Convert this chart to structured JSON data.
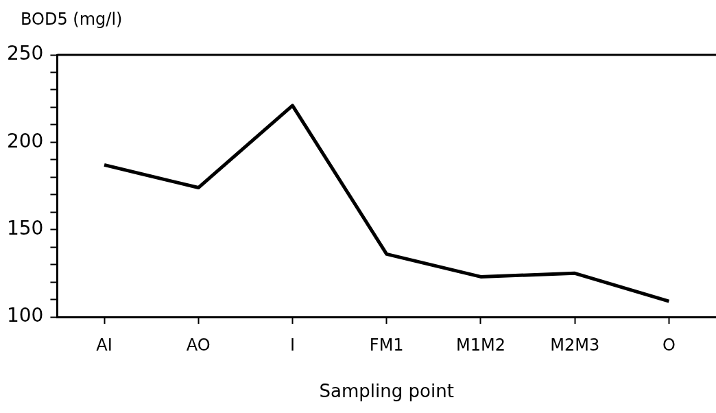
{
  "chart_data": {
    "type": "line",
    "ylabel": "BOD5 (mg/l)",
    "xlabel": "Sampling point",
    "categories": [
      "AI",
      "AO",
      "I",
      "FM1",
      "M1M2",
      "M2M3",
      "O"
    ],
    "series": [
      {
        "color": "#000000",
        "values": [
          187,
          174,
          221,
          136,
          123,
          125,
          109
        ]
      }
    ],
    "ylim": [
      100,
      250
    ],
    "yticks": [
      100,
      {
        "value": 110,
        "label": null
      },
      {
        "value": 120,
        "label": null
      },
      {
        "value": 130,
        "label": null
      },
      {
        "value": 140,
        "label": null
      },
      150,
      {
        "value": 160,
        "label": null
      },
      {
        "value": 170,
        "label": null
      },
      {
        "value": 180,
        "label": null
      },
      {
        "value": 190,
        "label": null
      },
      200,
      {
        "value": 210,
        "label": null
      },
      {
        "value": 220,
        "label": null
      },
      {
        "value": 230,
        "label": null
      },
      {
        "value": 240,
        "label": null
      },
      250
    ],
    "grid": false,
    "legend": false,
    "marker": "none",
    "line_style": "solid"
  }
}
